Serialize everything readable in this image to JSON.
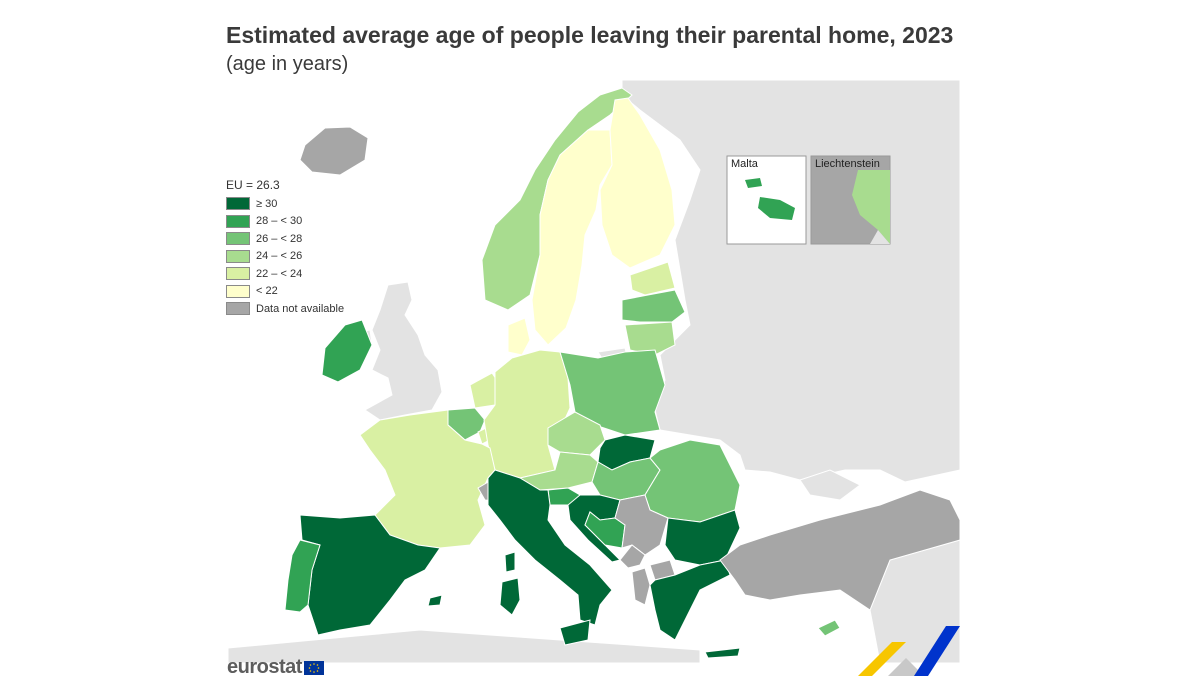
{
  "title": "Estimated average age of people leaving their parental home, 2023",
  "subtitle": "(age in years)",
  "legend": {
    "title": "EU = 26.3",
    "items": [
      {
        "label": "≥ 30",
        "color": "#006837"
      },
      {
        "label": "28 – < 30",
        "color": "#31a354"
      },
      {
        "label": "26 – < 28",
        "color": "#74c476"
      },
      {
        "label": "24 – < 26",
        "color": "#a8dc8f"
      },
      {
        "label": "22 – < 24",
        "color": "#d9f0a3"
      },
      {
        "label": "< 22",
        "color": "#ffffcc"
      },
      {
        "label": "Data not available",
        "color": "#a6a6a6"
      }
    ]
  },
  "insets": {
    "malta": "Malta",
    "liechtenstein": "Liechtenstein"
  },
  "logo": "eurostat",
  "colors": {
    "nonEU": "#e3e3e3",
    "sea": "#ffffff",
    "border": "#ffffff"
  },
  "classes": {
    "Spain": "≥ 30",
    "Italy": "≥ 30",
    "Croatia": "≥ 30",
    "Slovakia": "≥ 30",
    "Bulgaria": "≥ 30",
    "Greece": "≥ 30",
    "Portugal": "28 – < 30",
    "Ireland": "28 – < 30",
    "Slovenia": "28 – < 30",
    "Malta": "28 – < 30",
    "Bosnia and Herzegovina": "28 – < 30",
    "Poland": "26 – < 28",
    "Romania": "26 – < 28",
    "Hungary": "26 – < 28",
    "Lithuania": "26 – < 28",
    "Cyprus": "26 – < 28",
    "Belgium": "26 – < 28",
    "Norway": "24 – < 26",
    "Latvia": "24 – < 26",
    "Czechia": "24 – < 26",
    "Austria": "24 – < 26",
    "Liechtenstein": "24 – < 26",
    "France": "22 – < 24",
    "Germany": "22 – < 24",
    "Netherlands": "22 – < 24",
    "Estonia": "22 – < 24",
    "Luxembourg": "22 – < 24",
    "Sweden": "< 22",
    "Finland": "< 22",
    "Denmark": "< 22",
    "Iceland": "Data not available",
    "Switzerland": "Data not available",
    "Serbia": "Data not available",
    "Montenegro": "Data not available",
    "North Macedonia": "Data not available",
    "Albania": "Data not available",
    "Türkiye": "Data not available"
  }
}
